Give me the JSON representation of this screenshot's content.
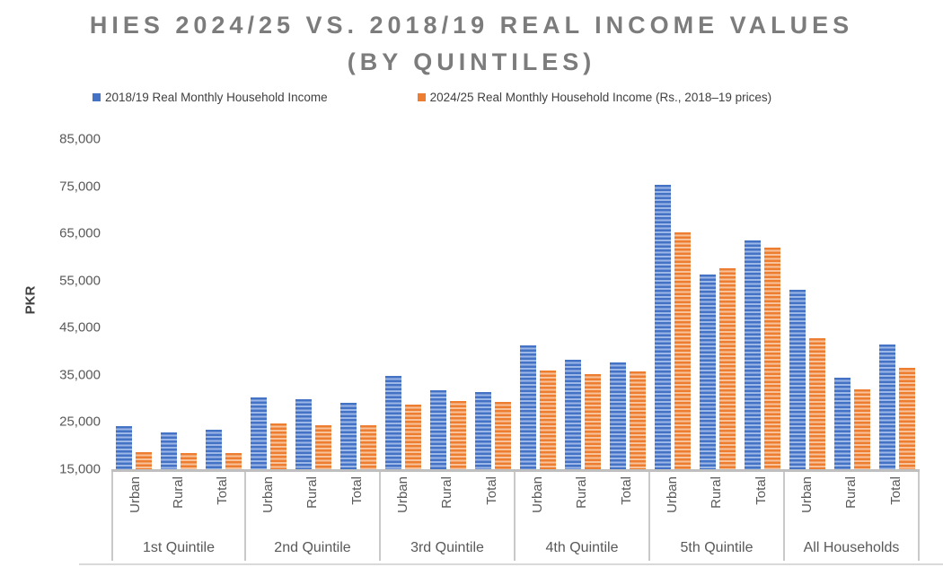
{
  "chart_data": {
    "type": "bar",
    "title": "HIES 2024/25 VS. 2018/19 REAL INCOME VALUES (BY QUINTILES)",
    "title_lines": [
      "HIES 2024/25 VS. 2018/19 REAL INCOME VALUES",
      "(BY QUINTILES)"
    ],
    "ylabel": "PKR",
    "ylim": [
      15000,
      85000
    ],
    "ytick_step": 10000,
    "ytick_labels": [
      "85,000",
      "75,000",
      "65,000",
      "55,000",
      "45,000",
      "35,000",
      "25,000",
      "15,000"
    ],
    "grid": false,
    "legend_position": "top",
    "groups": [
      "1st Quintile",
      "2nd Quintile",
      "3rd Quintile",
      "4th Quintile",
      "5th Quintile",
      "All Households"
    ],
    "subcategories": [
      "Urban",
      "Rural",
      "Total"
    ],
    "series": [
      {
        "name": "2018/19 Real Monthly Household Income",
        "color": "#4472C4",
        "stripe_color": "#9DB7E6",
        "values": [
          [
            24200,
            22800,
            23300
          ],
          [
            30200,
            29800,
            29100
          ],
          [
            34700,
            31700,
            31300
          ],
          [
            41200,
            38200,
            37600
          ],
          [
            75400,
            56200,
            63600
          ],
          [
            53000,
            34500,
            41500
          ]
        ]
      },
      {
        "name": "2024/25 Real Monthly Household Income (Rs., 2018–19 prices)",
        "color": "#ED7D31",
        "stripe_color": "#F8C29A",
        "values": [
          [
            18700,
            18400,
            18400
          ],
          [
            24700,
            24300,
            24400
          ],
          [
            28700,
            29400,
            29200
          ],
          [
            35900,
            35200,
            35700
          ],
          [
            65300,
            57600,
            61900
          ],
          [
            42800,
            31900,
            36500
          ]
        ]
      }
    ],
    "colors": {
      "title_text": "#7C7C7C",
      "axis_text": "#595959",
      "legend_text": "#404040",
      "axis_line": "#BFBFBF"
    }
  }
}
